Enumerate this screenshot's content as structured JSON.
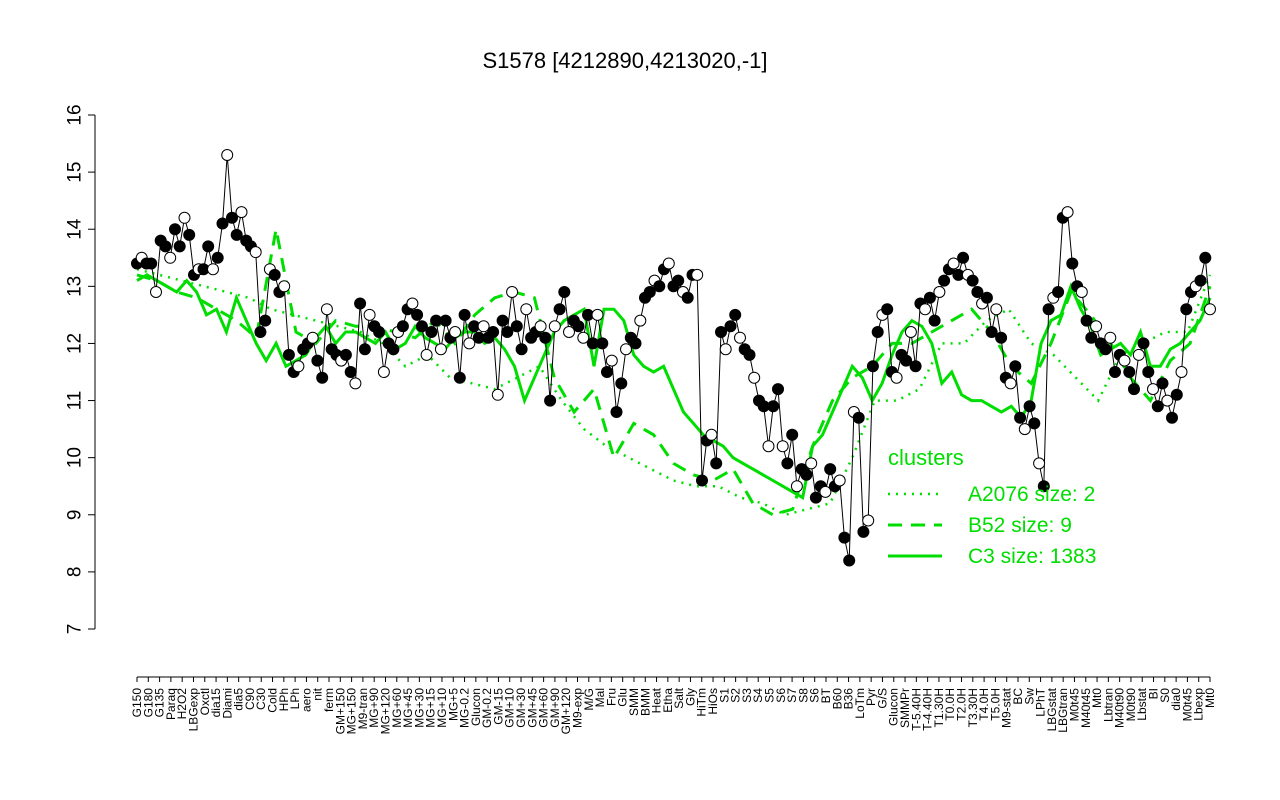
{
  "chart_data": {
    "type": "line",
    "title": "S1578 [4212890,4213020,-1]",
    "xlabel": "",
    "ylabel": "",
    "ylim": [
      7,
      16
    ],
    "yticks": [
      7,
      8,
      9,
      10,
      11,
      12,
      13,
      14,
      15,
      16
    ],
    "grid": false,
    "x_labels": [
      "G150",
      "G180",
      "G135",
      "Paraq",
      "H2O2",
      "LBGexp",
      "Oxctl",
      "dia15",
      "Diami",
      "dia5",
      "C90",
      "C30",
      "Cold",
      "HPh",
      "LPh",
      "aero",
      "nit",
      "ferm",
      "GM+150",
      "MG+150",
      "M9-tran",
      "MG+90",
      "MG+120",
      "MG+60",
      "MG+45",
      "MG+30",
      "MG+15",
      "MG+10",
      "MG+5",
      "MG-0.2",
      "Glucon",
      "GM-0.2",
      "GM-15",
      "GM+10",
      "GM+30",
      "GM+45",
      "GM+60",
      "GM+90",
      "GM+120",
      "M9-exp",
      "M/G",
      "Mal",
      "Fru",
      "Glu",
      "SMM",
      "BMM",
      "Heat",
      "Etha",
      "Salt",
      "Gly",
      "HiTm",
      "HiOs",
      "S1",
      "S2",
      "S3",
      "S4",
      "S5",
      "S6",
      "S7",
      "S8",
      "S6",
      "BT",
      "B60",
      "B36",
      "LoTm",
      "Pyr",
      "G/S",
      "Glucon",
      "SMMPr",
      "T-5.40H",
      "T-4.40H",
      "T1.30H",
      "T0.0H",
      "T2.0H",
      "T3.30H",
      "T4.0H",
      "T5.0H",
      "M9-stat",
      "BC",
      "Sw",
      "LPhT",
      "LBGstat",
      "LBGtran",
      "M0t45",
      "M40t45",
      "Mt0",
      "Lbtran",
      "M40t90",
      "M0t90",
      "Lbstat",
      "BI",
      "S0",
      "dia0",
      "M0t45",
      "Lbexp",
      "Mt0"
    ],
    "series": [
      {
        "name": "",
        "values": [
          13.4,
          13.5,
          13.4,
          13.4,
          12.9,
          13.8,
          13.7,
          13.5,
          14.0,
          13.7,
          14.2,
          13.9,
          13.2,
          13.3,
          13.3,
          13.7,
          13.3,
          13.5,
          14.1,
          15.3,
          14.2,
          13.9,
          14.3,
          13.8,
          13.7,
          13.6,
          12.2,
          12.4,
          13.3,
          13.2,
          12.9,
          13.0,
          11.8,
          11.5,
          11.6,
          11.9,
          12.0,
          12.1,
          11.7,
          11.4,
          12.6,
          11.9,
          11.8,
          11.7,
          11.8,
          11.5,
          11.3,
          12.7,
          11.9,
          12.5,
          12.3,
          12.2,
          11.5,
          12.0,
          11.9,
          12.2,
          12.3,
          12.6,
          12.7,
          12.5,
          12.3,
          11.8,
          12.2,
          12.4,
          11.9,
          12.4,
          12.1,
          12.2,
          11.4,
          12.5,
          12.0,
          12.3,
          12.1,
          12.3,
          12.1,
          12.2,
          11.1,
          12.4,
          12.2,
          12.9,
          12.3,
          11.9,
          12.6,
          12.1,
          12.2,
          12.3,
          12.1,
          11.0,
          12.3,
          12.6,
          12.9,
          12.2,
          12.4,
          12.3,
          12.1,
          12.5,
          12.0,
          12.5,
          12.0,
          11.5,
          11.7,
          10.8,
          11.3,
          11.9,
          12.1,
          12.0,
          12.4,
          12.8,
          12.9,
          13.1,
          13.0,
          13.3,
          13.4,
          13.0,
          13.1,
          12.9,
          12.8,
          13.2,
          13.2,
          9.6,
          10.3,
          10.4,
          9.9,
          12.2,
          11.9,
          12.3,
          12.5,
          12.1,
          11.9,
          11.8,
          11.4,
          11.0,
          10.9,
          10.2,
          10.9,
          11.2,
          10.2,
          9.9,
          10.4,
          9.5,
          9.8,
          9.7,
          9.9,
          9.3,
          9.5,
          9.4,
          9.8,
          9.5,
          9.6,
          8.6,
          8.2,
          10.8,
          10.7,
          8.7,
          8.9,
          11.6,
          12.2,
          12.5,
          12.6,
          11.5,
          11.4,
          11.8,
          11.7,
          12.2,
          11.6,
          12.7,
          12.6,
          12.8,
          12.4,
          12.9,
          13.1,
          13.3,
          13.4,
          13.2,
          13.5,
          13.2,
          13.1,
          12.9,
          12.7,
          12.8,
          12.2,
          12.6,
          12.1,
          11.4,
          11.3,
          11.6,
          10.7,
          10.5,
          10.9,
          10.6,
          9.9,
          9.5,
          12.6,
          12.8,
          12.9,
          14.2,
          14.3,
          13.4,
          13.0,
          12.9,
          12.4,
          12.1,
          12.3,
          12.0,
          11.9,
          12.1,
          11.5,
          11.8,
          11.7,
          11.5,
          11.2,
          11.8,
          12.0,
          11.5,
          11.2,
          10.9,
          11.3,
          11.0,
          10.7,
          11.1,
          11.5,
          12.6,
          12.9,
          13.0,
          13.1,
          13.5,
          12.6
        ]
      },
      {
        "name": "A2076 size: 2",
        "values": [
          13.3,
          13.2,
          13.1,
          13.0,
          12.9,
          12.8,
          12.6,
          12.5,
          12.4,
          12.3,
          12.2,
          12.0,
          11.6,
          11.8,
          11.4,
          11.3,
          11.2,
          11.4,
          11.6,
          11.0,
          10.5,
          10.2,
          10.0,
          9.8,
          9.6,
          9.5,
          9.5,
          9.3,
          9.2,
          9.0,
          9.1,
          9.2,
          10.0,
          11.0,
          11.0,
          11.2,
          12.0,
          12.0,
          12.4,
          12.6,
          12.0,
          11.8,
          11.4,
          11.0,
          11.8,
          12.0,
          12.2,
          12.2,
          13.2
        ]
      },
      {
        "name": "B52 size: 9",
        "values": [
          13.2,
          13.1,
          12.9,
          12.8,
          12.6,
          12.4,
          12.1,
          14.0,
          12.2,
          12.0,
          12.4,
          12.3,
          12.3,
          12.2,
          12.1,
          12.4,
          12.0,
          12.5,
          12.8,
          12.9,
          12.8,
          11.4,
          10.8,
          11.2,
          10.0,
          10.6,
          10.4,
          9.9,
          9.7,
          9.6,
          9.8,
          9.2,
          9.0,
          9.1,
          10.2,
          11.0,
          11.4,
          11.6,
          12.0,
          12.0,
          12.2,
          12.4,
          12.6,
          12.2,
          11.6,
          11.3,
          12.0,
          12.9,
          12.5,
          12.0,
          11.4,
          11.0,
          11.7,
          12.0,
          13.0
        ]
      },
      {
        "name": "C3 size: 1383",
        "values": [
          13.1,
          13.2,
          13.1,
          13.0,
          12.9,
          13.1,
          12.9,
          12.5,
          12.6,
          12.2,
          12.8,
          12.4,
          12.0,
          11.7,
          12.0,
          11.6,
          11.7,
          11.8,
          12.1,
          12.3,
          12.0,
          12.2,
          12.2,
          12.1,
          12.0,
          12.2,
          11.9,
          12.0,
          12.3,
          12.1,
          12.0,
          11.9,
          12.1,
          12.2,
          12.2,
          12.0,
          12.1,
          11.9,
          11.6,
          11.0,
          11.4,
          11.8,
          12.2,
          12.4,
          12.5,
          12.6,
          11.6,
          12.6,
          12.6,
          12.4,
          11.8,
          11.6,
          11.5,
          11.6,
          11.2,
          10.8,
          10.6,
          10.4,
          10.3,
          10.2,
          10.0,
          9.9,
          9.8,
          9.7,
          9.6,
          9.5,
          9.4,
          9.3,
          10.2,
          10.4,
          10.8,
          11.2,
          11.6,
          11.4,
          11.0,
          11.3,
          11.8,
          12.2,
          12.4,
          12.3,
          12.0,
          11.3,
          11.5,
          11.1,
          11.0,
          11.0,
          10.9,
          10.8,
          10.9,
          10.7,
          11.0,
          12.0,
          12.4,
          12.5,
          13.0,
          12.6,
          12.3,
          11.8,
          11.9,
          12.0,
          11.8,
          12.2,
          11.6,
          11.6,
          11.9,
          12.0,
          12.2,
          12.4,
          12.8
        ]
      }
    ],
    "legend": {
      "title": "clusters",
      "placement": "right",
      "entries": [
        {
          "label": "A2076 size: 2",
          "style": "dotted"
        },
        {
          "label": "B52 size: 9",
          "style": "dashed"
        },
        {
          "label": "C3 size: 1383",
          "style": "solid"
        }
      ]
    },
    "colors": {
      "cluster_lines": "#00dd00",
      "point_outline": "#000000",
      "point_fill_dark": "#000000",
      "point_fill_light": "#ffffff"
    }
  }
}
